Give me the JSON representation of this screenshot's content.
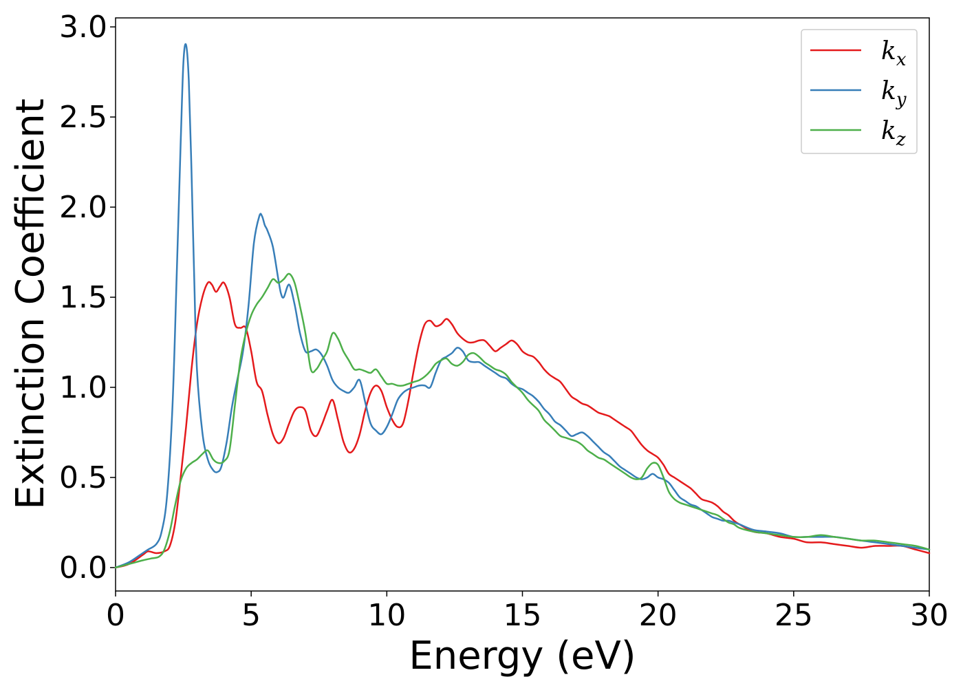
{
  "chart_data": {
    "type": "line",
    "xlabel": "Energy (eV)",
    "ylabel": "Extinction Coefficient",
    "xlim": [
      0,
      30
    ],
    "ylim": [
      -0.13,
      3.05
    ],
    "xticks": [
      0,
      5,
      10,
      15,
      20,
      25,
      30
    ],
    "xtick_labels": [
      "0",
      "5",
      "10",
      "15",
      "20",
      "25",
      "30"
    ],
    "yticks": [
      0.0,
      0.5,
      1.0,
      1.5,
      2.0,
      2.5,
      3.0
    ],
    "ytick_labels": [
      "0.0",
      "0.5",
      "1.0",
      "1.5",
      "2.0",
      "2.5",
      "3.0"
    ],
    "grid": false,
    "legend_position": "top-right",
    "series": [
      {
        "name": "k",
        "subscript": "x",
        "color": "#e41a1c",
        "x": [
          0,
          0.5,
          1,
          1.2,
          1.5,
          1.8,
          2.0,
          2.2,
          2.4,
          2.6,
          2.8,
          3.0,
          3.2,
          3.4,
          3.55,
          3.7,
          3.85,
          4.0,
          4.2,
          4.4,
          4.6,
          4.8,
          5.0,
          5.2,
          5.4,
          5.6,
          5.8,
          6.0,
          6.2,
          6.4,
          6.6,
          6.8,
          7.0,
          7.2,
          7.4,
          7.6,
          7.8,
          8.0,
          8.2,
          8.4,
          8.6,
          8.8,
          9.0,
          9.2,
          9.4,
          9.6,
          9.8,
          10.0,
          10.2,
          10.4,
          10.6,
          10.8,
          11.0,
          11.2,
          11.4,
          11.6,
          11.8,
          12.0,
          12.2,
          12.4,
          12.6,
          12.8,
          13.0,
          13.2,
          13.4,
          13.6,
          13.8,
          14.0,
          14.2,
          14.4,
          14.6,
          14.8,
          15.0,
          15.2,
          15.4,
          15.6,
          15.8,
          16.0,
          16.2,
          16.4,
          16.6,
          16.8,
          17.0,
          17.2,
          17.4,
          17.6,
          17.8,
          18.0,
          18.2,
          18.4,
          18.6,
          18.8,
          19.0,
          19.2,
          19.4,
          19.6,
          19.8,
          20.0,
          20.2,
          20.4,
          20.6,
          20.8,
          21.0,
          21.2,
          21.4,
          21.6,
          21.8,
          22.0,
          22.2,
          22.4,
          22.6,
          22.8,
          23.0,
          23.5,
          24.0,
          24.5,
          25.0,
          25.5,
          26.0,
          26.5,
          27.0,
          27.5,
          28.0,
          28.5,
          29.0,
          29.5,
          30.0
        ],
        "y": [
          0,
          0.02,
          0.07,
          0.09,
          0.08,
          0.09,
          0.12,
          0.25,
          0.5,
          0.78,
          1.1,
          1.35,
          1.5,
          1.58,
          1.57,
          1.53,
          1.56,
          1.58,
          1.5,
          1.35,
          1.33,
          1.33,
          1.2,
          1.03,
          0.98,
          0.85,
          0.74,
          0.69,
          0.72,
          0.8,
          0.87,
          0.89,
          0.87,
          0.76,
          0.73,
          0.79,
          0.87,
          0.93,
          0.82,
          0.7,
          0.64,
          0.66,
          0.74,
          0.87,
          0.97,
          1.01,
          0.98,
          0.89,
          0.82,
          0.78,
          0.8,
          0.93,
          1.1,
          1.25,
          1.35,
          1.37,
          1.34,
          1.35,
          1.38,
          1.35,
          1.3,
          1.27,
          1.25,
          1.25,
          1.26,
          1.26,
          1.23,
          1.2,
          1.22,
          1.24,
          1.26,
          1.24,
          1.2,
          1.18,
          1.17,
          1.14,
          1.1,
          1.07,
          1.05,
          1.03,
          0.99,
          0.95,
          0.93,
          0.91,
          0.9,
          0.88,
          0.86,
          0.85,
          0.84,
          0.82,
          0.8,
          0.78,
          0.76,
          0.72,
          0.68,
          0.65,
          0.63,
          0.61,
          0.57,
          0.52,
          0.5,
          0.48,
          0.46,
          0.44,
          0.41,
          0.38,
          0.37,
          0.36,
          0.34,
          0.31,
          0.29,
          0.26,
          0.24,
          0.2,
          0.19,
          0.17,
          0.16,
          0.14,
          0.14,
          0.13,
          0.12,
          0.11,
          0.12,
          0.12,
          0.12,
          0.1,
          0.08
        ]
      },
      {
        "name": "k",
        "subscript": "y",
        "color": "#377eb8",
        "x": [
          0,
          0.5,
          1,
          1.2,
          1.5,
          1.7,
          1.9,
          2.1,
          2.25,
          2.4,
          2.5,
          2.6,
          2.7,
          2.8,
          2.9,
          3.0,
          3.2,
          3.4,
          3.6,
          3.75,
          3.9,
          4.1,
          4.3,
          4.5,
          4.7,
          4.9,
          5.1,
          5.3,
          5.4,
          5.5,
          5.6,
          5.8,
          6.0,
          6.1,
          6.2,
          6.4,
          6.6,
          6.8,
          7.0,
          7.2,
          7.4,
          7.6,
          7.8,
          8.0,
          8.2,
          8.4,
          8.6,
          8.8,
          9.0,
          9.2,
          9.4,
          9.6,
          9.8,
          10.0,
          10.2,
          10.4,
          10.6,
          10.8,
          11.0,
          11.2,
          11.4,
          11.6,
          11.8,
          12.0,
          12.2,
          12.4,
          12.6,
          12.8,
          13.0,
          13.2,
          13.4,
          13.6,
          13.8,
          14.0,
          14.2,
          14.4,
          14.6,
          14.8,
          15.0,
          15.2,
          15.4,
          15.6,
          15.8,
          16.0,
          16.2,
          16.4,
          16.6,
          16.8,
          17.0,
          17.2,
          17.4,
          17.6,
          17.8,
          18.0,
          18.2,
          18.4,
          18.6,
          18.8,
          19.0,
          19.2,
          19.4,
          19.6,
          19.8,
          20.0,
          20.2,
          20.4,
          20.6,
          20.8,
          21.0,
          21.2,
          21.4,
          21.6,
          21.8,
          22.0,
          22.2,
          22.4,
          22.6,
          22.8,
          23.0,
          23.5,
          24.0,
          24.5,
          25.0,
          25.5,
          26.0,
          26.5,
          27.0,
          27.5,
          28.0,
          28.5,
          29.0,
          29.5,
          30.0
        ],
        "y": [
          0,
          0.03,
          0.08,
          0.1,
          0.13,
          0.2,
          0.4,
          0.9,
          1.6,
          2.35,
          2.8,
          2.9,
          2.7,
          2.2,
          1.6,
          1.1,
          0.75,
          0.6,
          0.54,
          0.53,
          0.56,
          0.7,
          0.9,
          1.05,
          1.2,
          1.45,
          1.8,
          1.95,
          1.95,
          1.9,
          1.87,
          1.78,
          1.6,
          1.52,
          1.5,
          1.57,
          1.46,
          1.3,
          1.2,
          1.2,
          1.21,
          1.18,
          1.12,
          1.04,
          1.0,
          0.98,
          0.97,
          1.0,
          1.04,
          0.92,
          0.8,
          0.76,
          0.74,
          0.78,
          0.85,
          0.93,
          0.97,
          0.99,
          1.0,
          1.01,
          1.01,
          1.0,
          1.08,
          1.15,
          1.17,
          1.19,
          1.22,
          1.2,
          1.15,
          1.14,
          1.14,
          1.12,
          1.1,
          1.08,
          1.06,
          1.05,
          1.02,
          1.0,
          0.99,
          0.97,
          0.95,
          0.92,
          0.88,
          0.85,
          0.81,
          0.79,
          0.76,
          0.73,
          0.74,
          0.75,
          0.73,
          0.7,
          0.67,
          0.64,
          0.62,
          0.59,
          0.56,
          0.54,
          0.52,
          0.5,
          0.49,
          0.5,
          0.52,
          0.5,
          0.49,
          0.47,
          0.43,
          0.39,
          0.37,
          0.35,
          0.34,
          0.32,
          0.3,
          0.28,
          0.27,
          0.26,
          0.26,
          0.25,
          0.24,
          0.21,
          0.2,
          0.19,
          0.17,
          0.17,
          0.17,
          0.17,
          0.16,
          0.15,
          0.14,
          0.13,
          0.12,
          0.11,
          0.1
        ]
      },
      {
        "name": "k",
        "subscript": "z",
        "color": "#4daf4a",
        "x": [
          0,
          0.5,
          1,
          1.3,
          1.6,
          1.8,
          2.0,
          2.2,
          2.4,
          2.6,
          2.8,
          3.0,
          3.2,
          3.4,
          3.6,
          3.8,
          4.0,
          4.2,
          4.4,
          4.6,
          4.8,
          5.0,
          5.2,
          5.4,
          5.6,
          5.8,
          6.0,
          6.2,
          6.4,
          6.6,
          6.8,
          7.0,
          7.2,
          7.4,
          7.6,
          7.8,
          8.0,
          8.2,
          8.4,
          8.6,
          8.8,
          9.0,
          9.2,
          9.4,
          9.6,
          9.8,
          10.0,
          10.2,
          10.4,
          10.6,
          10.8,
          11.0,
          11.2,
          11.4,
          11.6,
          11.8,
          12.0,
          12.2,
          12.4,
          12.6,
          12.8,
          13.0,
          13.2,
          13.4,
          13.6,
          13.8,
          14.0,
          14.2,
          14.4,
          14.6,
          14.8,
          15.0,
          15.2,
          15.4,
          15.6,
          15.8,
          16.0,
          16.2,
          16.4,
          16.6,
          16.8,
          17.0,
          17.2,
          17.4,
          17.6,
          17.8,
          18.0,
          18.2,
          18.4,
          18.6,
          18.8,
          19.0,
          19.2,
          19.4,
          19.6,
          19.8,
          20.0,
          20.2,
          20.4,
          20.6,
          20.8,
          21.0,
          21.2,
          21.4,
          21.6,
          21.8,
          22.0,
          22.2,
          22.4,
          22.6,
          22.8,
          23.0,
          23.5,
          24.0,
          24.5,
          25.0,
          25.5,
          26.0,
          26.5,
          27.0,
          27.5,
          28.0,
          28.5,
          29.0,
          29.5,
          30.0
        ],
        "y": [
          0,
          0.02,
          0.04,
          0.05,
          0.06,
          0.1,
          0.2,
          0.35,
          0.48,
          0.55,
          0.58,
          0.6,
          0.63,
          0.65,
          0.6,
          0.58,
          0.59,
          0.65,
          0.9,
          1.15,
          1.3,
          1.4,
          1.46,
          1.5,
          1.55,
          1.6,
          1.58,
          1.6,
          1.63,
          1.58,
          1.45,
          1.3,
          1.1,
          1.1,
          1.15,
          1.2,
          1.3,
          1.27,
          1.2,
          1.15,
          1.1,
          1.1,
          1.09,
          1.08,
          1.1,
          1.06,
          1.02,
          1.02,
          1.01,
          1.01,
          1.02,
          1.03,
          1.04,
          1.06,
          1.09,
          1.13,
          1.15,
          1.16,
          1.13,
          1.12,
          1.14,
          1.18,
          1.19,
          1.17,
          1.14,
          1.12,
          1.1,
          1.09,
          1.07,
          1.03,
          1.0,
          0.97,
          0.93,
          0.9,
          0.87,
          0.82,
          0.79,
          0.76,
          0.73,
          0.72,
          0.71,
          0.7,
          0.68,
          0.65,
          0.63,
          0.61,
          0.6,
          0.58,
          0.56,
          0.54,
          0.52,
          0.5,
          0.49,
          0.5,
          0.55,
          0.58,
          0.57,
          0.5,
          0.42,
          0.38,
          0.36,
          0.35,
          0.34,
          0.33,
          0.32,
          0.31,
          0.3,
          0.29,
          0.27,
          0.25,
          0.24,
          0.22,
          0.2,
          0.19,
          0.18,
          0.17,
          0.17,
          0.18,
          0.17,
          0.16,
          0.15,
          0.15,
          0.14,
          0.13,
          0.12,
          0.1
        ]
      }
    ]
  }
}
